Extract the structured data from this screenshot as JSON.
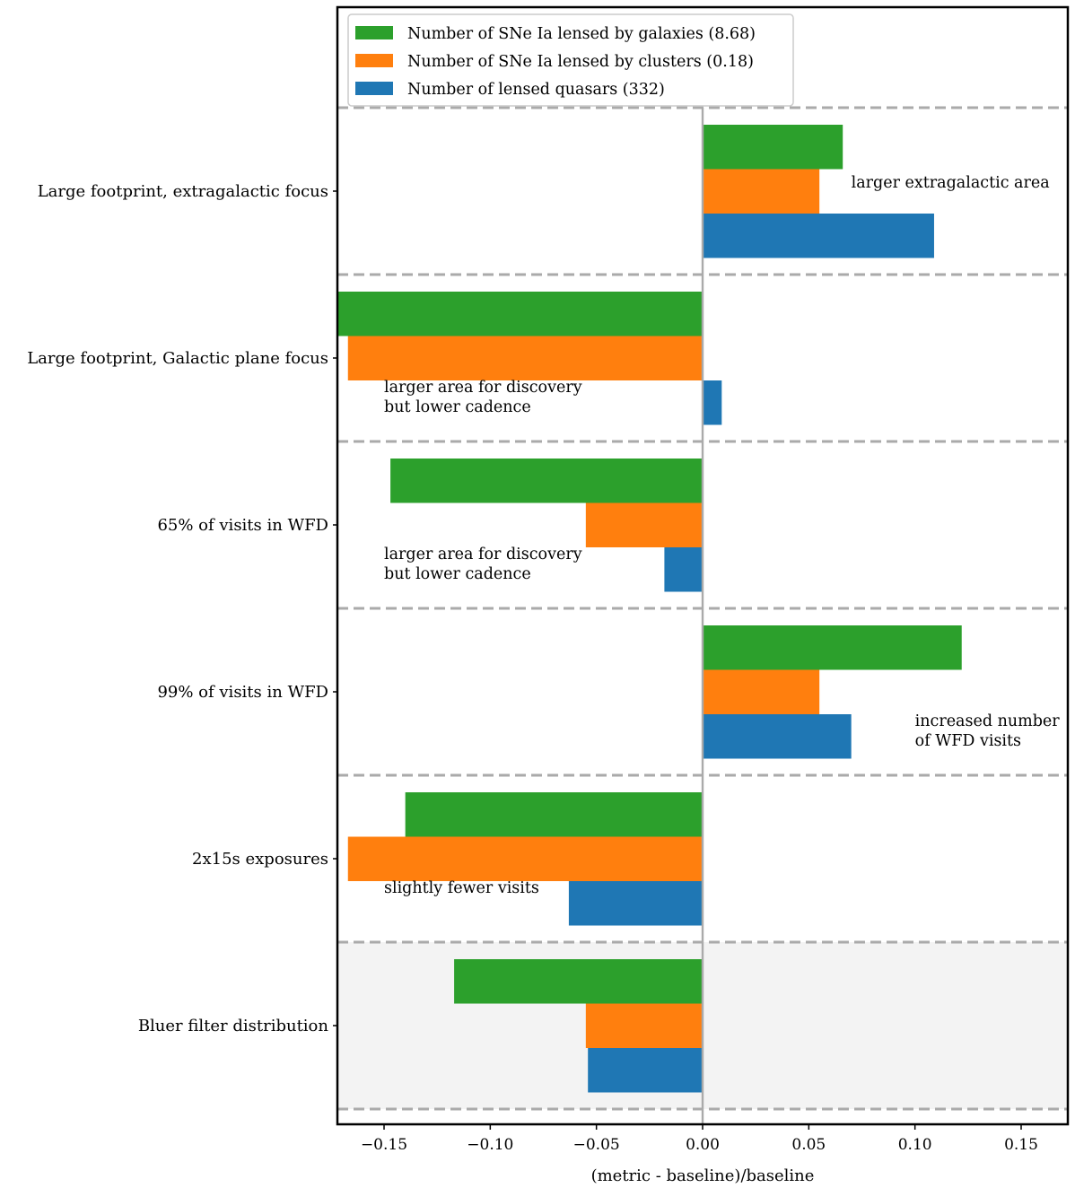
{
  "chart_data": {
    "type": "bar",
    "orientation": "horizontal",
    "categories": [
      "Large footprint, extragalactic focus",
      "Large footprint, Galactic plane focus",
      "65% of visits in WFD",
      "99% of visits in WFD",
      "2x15s exposures",
      "Bluer filter distribution"
    ],
    "series": [
      {
        "name": "Number of SNe Ia lensed by galaxies (8.68)",
        "color": "#2ca02c",
        "values": [
          0.066,
          -0.172,
          -0.147,
          0.122,
          -0.14,
          -0.117
        ]
      },
      {
        "name": "Number of SNe Ia lensed by clusters (0.18)",
        "color": "#ff7f0e",
        "values": [
          0.055,
          -0.167,
          -0.055,
          0.055,
          -0.167,
          -0.055
        ]
      },
      {
        "name": "Number of lensed quasars (332)",
        "color": "#1f77b4",
        "values": [
          0.109,
          0.009,
          -0.018,
          0.07,
          -0.063,
          -0.054
        ]
      }
    ],
    "xlabel": "(metric - baseline)/baseline",
    "ylabel": "",
    "xlim": [
      -0.172,
      0.172
    ],
    "xticks": [
      -0.15,
      -0.1,
      -0.05,
      0.0,
      0.05,
      0.1,
      0.15
    ],
    "xtick_labels": [
      "−0.15",
      "−0.10",
      "−0.05",
      "0.00",
      "0.05",
      "0.10",
      "0.15"
    ],
    "legend_position": "top-left",
    "highlighted_category": "Bluer filter distribution",
    "separators": "dashed gray lines between categories",
    "annotations": [
      {
        "category": "Large footprint, extragalactic focus",
        "lines": [
          "larger extragalactic area"
        ],
        "anchor_x": 0.07,
        "offset": 0
      },
      {
        "category": "Large footprint, Galactic plane focus",
        "lines": [
          "larger area for discovery",
          "but lower cadence"
        ],
        "anchor_x": -0.15,
        "offset": 1.1
      },
      {
        "category": "65% of visits in WFD",
        "lines": [
          "larger area for discovery",
          "but lower cadence"
        ],
        "anchor_x": -0.15,
        "offset": 1.1
      },
      {
        "category": "99% of visits in WFD",
        "lines": [
          "increased number",
          "of WFD visits"
        ],
        "anchor_x": 0.1,
        "offset": 1.1
      },
      {
        "category": "2x15s exposures",
        "lines": [
          "slightly fewer visits"
        ],
        "anchor_x": -0.15,
        "offset": 1.1
      }
    ]
  }
}
